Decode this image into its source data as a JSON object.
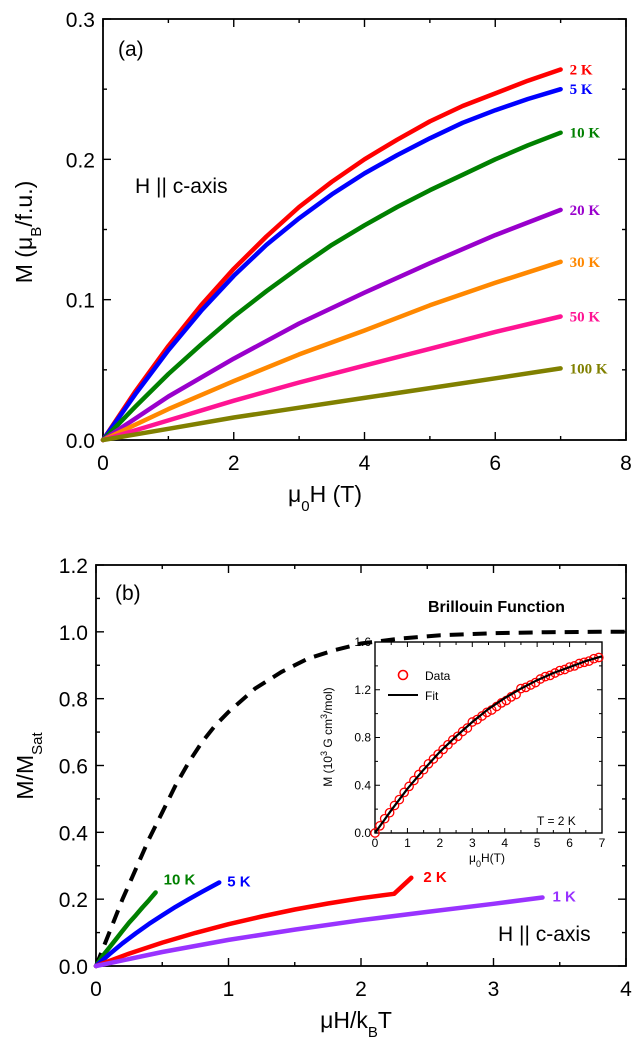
{
  "chart_data": [
    {
      "type": "line",
      "panel_label": "(a)",
      "annotation": "H || c-axis",
      "xlabel_main": "μ",
      "xlabel_sub": "0",
      "xlabel_rest": "H (T)",
      "ylabel_main": "M (μ",
      "ylabel_sub": "B",
      "ylabel_rest": "/f.u.)",
      "xlim": [
        0,
        8
      ],
      "ylim": [
        0,
        0.3
      ],
      "xticks": [
        "0",
        "2",
        "4",
        "6",
        "8"
      ],
      "yticks": [
        "0.0",
        "0.1",
        "0.2",
        "0.3"
      ],
      "series": [
        {
          "name": "2 K",
          "color": "#ff0000",
          "x": [
            0,
            0.5,
            1,
            1.5,
            2,
            2.5,
            3,
            3.5,
            4,
            4.5,
            5,
            5.5,
            6,
            6.5,
            7
          ],
          "y": [
            0,
            0.035,
            0.067,
            0.096,
            0.122,
            0.145,
            0.166,
            0.184,
            0.2,
            0.214,
            0.227,
            0.238,
            0.247,
            0.256,
            0.264
          ]
        },
        {
          "name": "5 K",
          "color": "#0000ff",
          "x": [
            0,
            0.5,
            1,
            1.5,
            2,
            2.5,
            3,
            3.5,
            4,
            4.5,
            5,
            5.5,
            6,
            6.5,
            7
          ],
          "y": [
            0,
            0.033,
            0.064,
            0.092,
            0.117,
            0.139,
            0.158,
            0.175,
            0.19,
            0.203,
            0.215,
            0.226,
            0.235,
            0.243,
            0.25
          ]
        },
        {
          "name": "10 K",
          "color": "#008000",
          "x": [
            0,
            0.5,
            1,
            1.5,
            2,
            2.5,
            3,
            3.5,
            4,
            4.5,
            5,
            5.5,
            6,
            6.5,
            7
          ],
          "y": [
            0,
            0.024,
            0.047,
            0.068,
            0.088,
            0.106,
            0.123,
            0.139,
            0.153,
            0.166,
            0.178,
            0.189,
            0.2,
            0.21,
            0.219
          ]
        },
        {
          "name": "20 K",
          "color": "#9900cc",
          "x": [
            0,
            1,
            2,
            3,
            4,
            5,
            6,
            7
          ],
          "y": [
            0,
            0.031,
            0.058,
            0.083,
            0.105,
            0.126,
            0.146,
            0.164
          ]
        },
        {
          "name": "30 K",
          "color": "#ff8800",
          "x": [
            0,
            1,
            2,
            3,
            4,
            5,
            6,
            7
          ],
          "y": [
            0,
            0.022,
            0.042,
            0.061,
            0.078,
            0.096,
            0.112,
            0.127
          ]
        },
        {
          "name": "50 K",
          "color": "#ff1493",
          "x": [
            0,
            1,
            2,
            3,
            4,
            5,
            6,
            7
          ],
          "y": [
            0,
            0.014,
            0.028,
            0.041,
            0.053,
            0.065,
            0.077,
            0.088
          ]
        },
        {
          "name": "100 K",
          "color": "#808000",
          "x": [
            0,
            1,
            2,
            3,
            4,
            5,
            6,
            7
          ],
          "y": [
            0,
            0.008,
            0.016,
            0.023,
            0.03,
            0.037,
            0.044,
            0.051
          ]
        }
      ]
    },
    {
      "type": "line",
      "panel_label": "(b)",
      "annotation": "H || c-axis",
      "xlabel_main": "μH/k",
      "xlabel_sub": "B",
      "xlabel_rest": "T",
      "ylabel_main": "M/M",
      "ylabel_sub": "Sat",
      "xlim": [
        0,
        4
      ],
      "ylim": [
        0,
        1.2
      ],
      "xticks": [
        "0",
        "1",
        "2",
        "3",
        "4"
      ],
      "yticks": [
        "0.0",
        "0.2",
        "0.4",
        "0.6",
        "0.8",
        "1.0",
        "1.2"
      ],
      "brillouin_label": "Brillouin Function",
      "brillouin": {
        "color": "#000000",
        "x": [
          0,
          0.1,
          0.2,
          0.3,
          0.4,
          0.5,
          0.6,
          0.7,
          0.8,
          0.9,
          1.0,
          1.2,
          1.4,
          1.6,
          1.8,
          2.0,
          2.3,
          2.6,
          3.0,
          3.4,
          3.8,
          4.0
        ],
        "y": [
          0,
          0.1,
          0.2,
          0.29,
          0.38,
          0.46,
          0.54,
          0.61,
          0.67,
          0.72,
          0.76,
          0.83,
          0.88,
          0.92,
          0.945,
          0.965,
          0.98,
          0.99,
          0.996,
          0.999,
          1.0,
          1.0
        ]
      },
      "series": [
        {
          "name": "10 K",
          "color": "#008000",
          "x": [
            0,
            0.05,
            0.1,
            0.15,
            0.2,
            0.25,
            0.3,
            0.35,
            0.4,
            0.45
          ],
          "y": [
            0,
            0.03,
            0.055,
            0.08,
            0.105,
            0.13,
            0.152,
            0.175,
            0.197,
            0.22
          ]
        },
        {
          "name": "5 K",
          "color": "#0000ff",
          "x": [
            0,
            0.1,
            0.2,
            0.3,
            0.4,
            0.5,
            0.6,
            0.7,
            0.8,
            0.93
          ],
          "y": [
            0,
            0.035,
            0.068,
            0.098,
            0.126,
            0.152,
            0.177,
            0.2,
            0.222,
            0.25
          ]
        },
        {
          "name": "2 K",
          "color": "#ff0000",
          "x": [
            0,
            0.25,
            0.5,
            0.75,
            1.0,
            1.25,
            1.5,
            1.75,
            2.0,
            2.25,
            2.38
          ],
          "y": [
            0,
            0.037,
            0.07,
            0.099,
            0.125,
            0.148,
            0.169,
            0.187,
            0.203,
            0.216,
            0.264
          ]
        },
        {
          "name": "1 K",
          "color": "#9933ff",
          "x": [
            0,
            0.5,
            1.0,
            1.5,
            2.0,
            2.5,
            3.0,
            3.37
          ],
          "y": [
            0,
            0.042,
            0.078,
            0.109,
            0.137,
            0.162,
            0.186,
            0.205
          ]
        }
      ],
      "inset": {
        "type": "scatter",
        "xlabel_main": "μ",
        "xlabel_sub": "0",
        "xlabel_rest": "H(T)",
        "ylabel_main": "M (10",
        "ylabel_sup": "3",
        "ylabel_rest": "  G cm",
        "ylabel_sup2": "3",
        "ylabel_rest2": "/mol)",
        "xlim": [
          0,
          7
        ],
        "ylim": [
          0,
          1.6
        ],
        "xticks": [
          "0",
          "1",
          "2",
          "3",
          "4",
          "5",
          "6",
          "7"
        ],
        "yticks": [
          "0.0",
          "0.4",
          "0.8",
          "1.2",
          "1.6"
        ],
        "annotation": "T = 2 K",
        "legend": [
          {
            "name": "Data",
            "color": "#ff0000"
          },
          {
            "name": "Fit",
            "color": "#000000"
          }
        ],
        "fit": {
          "x": [
            0,
            0.5,
            1,
            1.5,
            2,
            2.5,
            3,
            3.5,
            4,
            4.5,
            5,
            5.5,
            6,
            6.5,
            7
          ],
          "y": [
            0,
            0.19,
            0.37,
            0.53,
            0.68,
            0.81,
            0.93,
            1.04,
            1.13,
            1.21,
            1.28,
            1.34,
            1.39,
            1.44,
            1.48
          ]
        },
        "data": {
          "x": [
            0.0,
            0.15,
            0.3,
            0.45,
            0.6,
            0.75,
            0.9,
            1.05,
            1.2,
            1.35,
            1.5,
            1.65,
            1.8,
            1.95,
            2.1,
            2.25,
            2.4,
            2.55,
            2.7,
            2.85,
            3.0,
            3.15,
            3.3,
            3.45,
            3.6,
            3.75,
            3.9,
            4.05,
            4.2,
            4.35,
            4.5,
            4.65,
            4.8,
            4.95,
            5.1,
            5.25,
            5.4,
            5.55,
            5.7,
            5.85,
            6.0,
            6.15,
            6.3,
            6.45,
            6.6,
            6.75,
            6.9
          ],
          "y": [
            0.0,
            0.06,
            0.12,
            0.17,
            0.23,
            0.28,
            0.34,
            0.39,
            0.44,
            0.49,
            0.53,
            0.58,
            0.62,
            0.66,
            0.7,
            0.74,
            0.78,
            0.81,
            0.85,
            0.88,
            0.93,
            0.95,
            0.98,
            1.01,
            1.03,
            1.06,
            1.09,
            1.11,
            1.14,
            1.16,
            1.21,
            1.22,
            1.24,
            1.26,
            1.29,
            1.31,
            1.32,
            1.34,
            1.36,
            1.37,
            1.39,
            1.4,
            1.42,
            1.43,
            1.44,
            1.46,
            1.47
          ]
        }
      }
    }
  ]
}
